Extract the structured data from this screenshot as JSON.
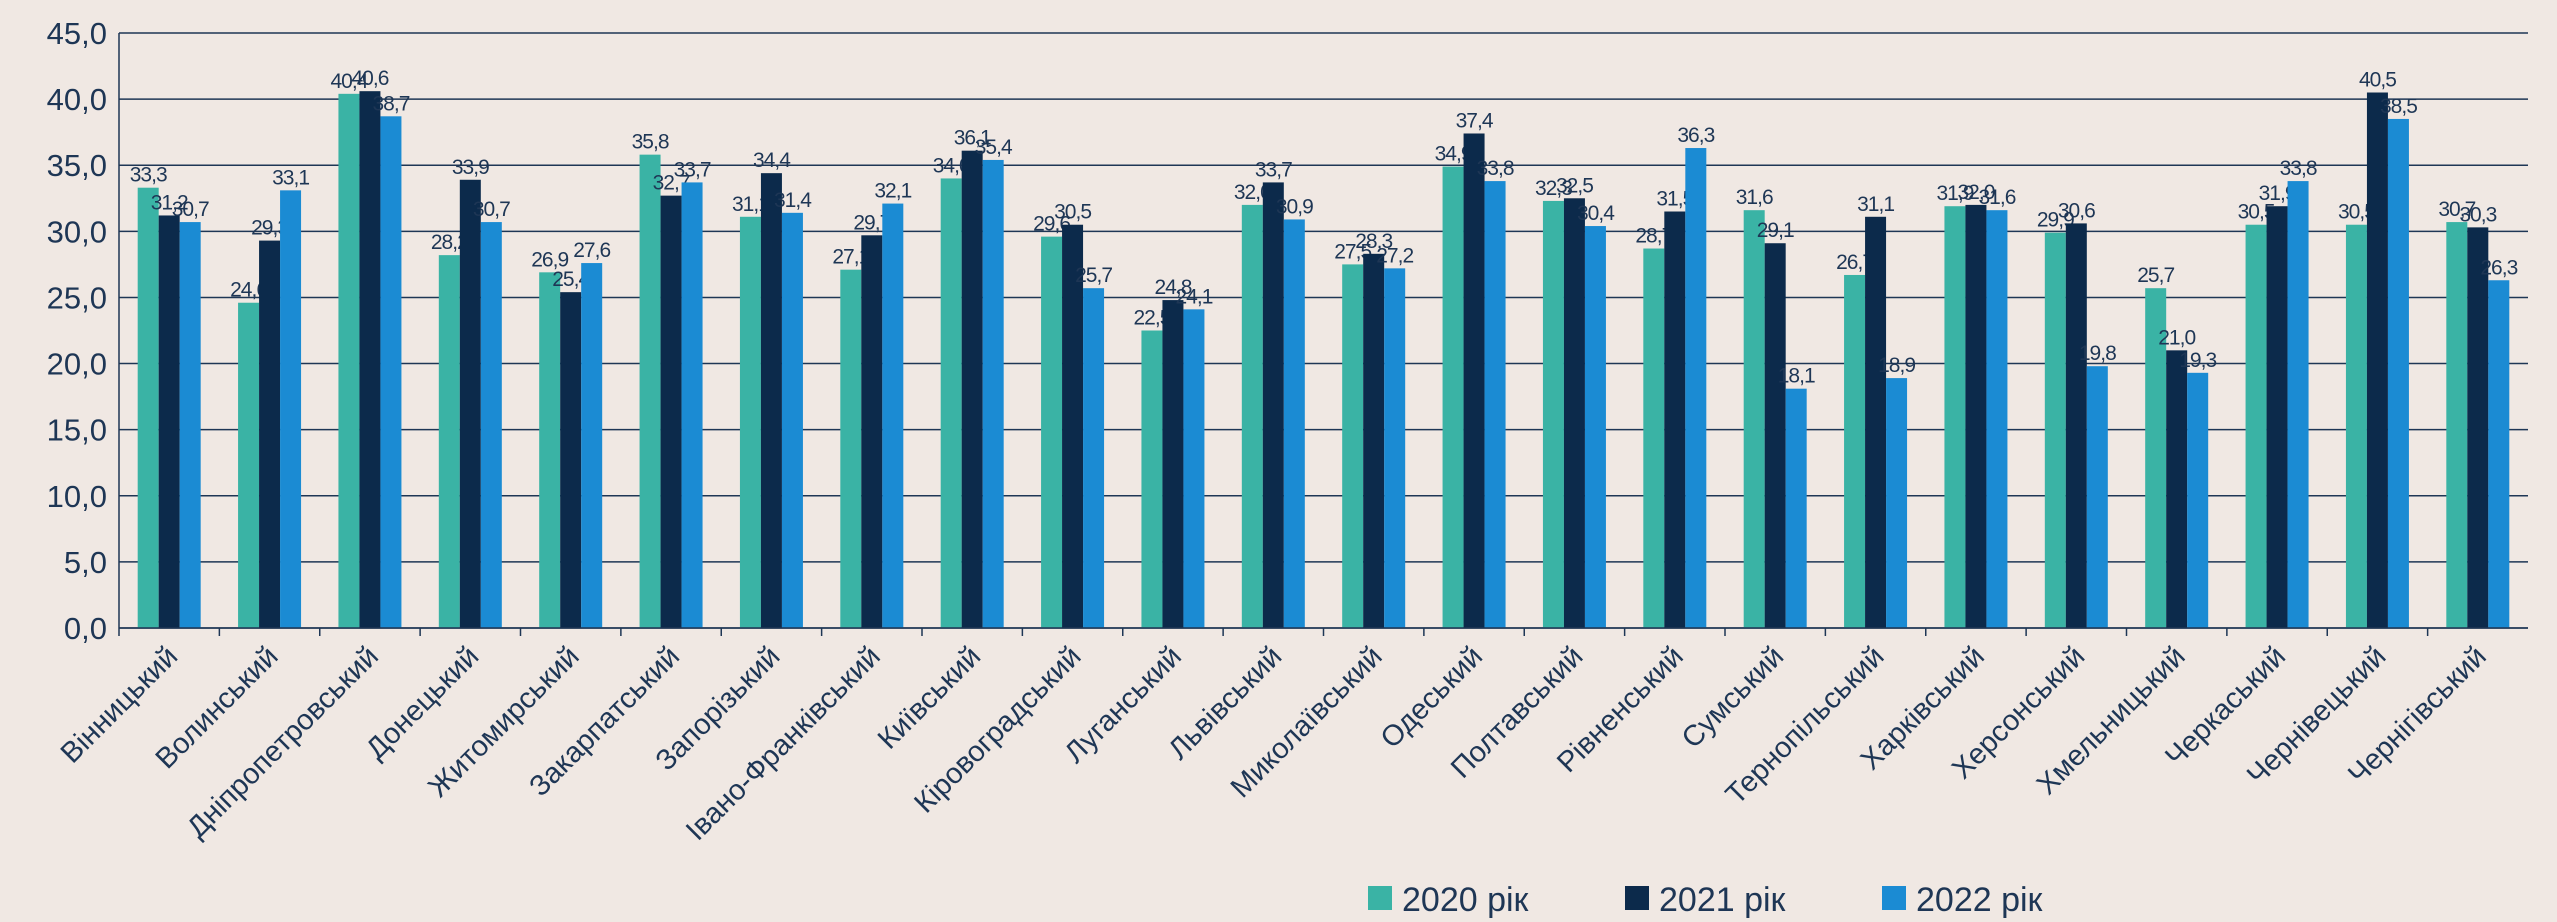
{
  "chart_data": {
    "type": "bar",
    "categories": [
      "Вінницький",
      "Волинський",
      "Дніпропетровський",
      "Донецький",
      "Житомирський",
      "Закарпатський",
      "Запорізький",
      "Івано-Франківський",
      "Київський",
      "Кіровоградський",
      "Луганський",
      "Львівський",
      "Миколаївський",
      "Одеський",
      "Полтавський",
      "Рівненський",
      "Сумський",
      "Тернопільський",
      "Харківський",
      "Херсонський",
      "Хмельницький",
      "Черкаський",
      "Чернівецький",
      "Чернігівський"
    ],
    "series": [
      {
        "name": "2020 рік",
        "color": "#3ab3a5",
        "values": [
          33.3,
          24.6,
          40.4,
          28.2,
          26.9,
          35.8,
          31.1,
          27.1,
          34.0,
          29.6,
          22.5,
          32.0,
          27.5,
          34.9,
          32.3,
          28.7,
          31.6,
          26.7,
          31.9,
          29.9,
          25.7,
          30.5,
          30.5,
          30.7
        ],
        "value_labels": [
          "33,3",
          "24,6",
          "40,4",
          "28,2",
          "26,9",
          "35,8",
          "31,1",
          "27,1",
          "34,0",
          "29,6",
          "22,5",
          "32,0",
          "27,5",
          "34,9",
          "32,3",
          "28,7",
          "31,6",
          "26,7",
          "31,9",
          "29,9",
          "25,7",
          "30,5",
          "30,5",
          "30,7"
        ]
      },
      {
        "name": "2021 рік",
        "color": "#0c2a4b",
        "values": [
          31.2,
          29.3,
          40.6,
          33.9,
          25.4,
          32.7,
          34.4,
          29.7,
          36.1,
          30.5,
          24.8,
          33.7,
          28.3,
          37.4,
          32.5,
          31.5,
          29.1,
          31.1,
          32.0,
          30.6,
          21.0,
          31.9,
          40.5,
          30.3
        ],
        "value_labels": [
          "31,2",
          "29,3",
          "40,6",
          "33,9",
          "25,4",
          "32,7",
          "34,4",
          "29,7",
          "36,1",
          "30,5",
          "24,8",
          "33,7",
          "28,3",
          "37,4",
          "32,5",
          "31,5",
          "29,1",
          "31,1",
          "32,0",
          "30,6",
          "21,0",
          "31,9",
          "40,5",
          "30,3"
        ]
      },
      {
        "name": "2022 рік",
        "color": "#1b8bd3",
        "values": [
          30.7,
          33.1,
          38.7,
          30.7,
          27.6,
          33.7,
          31.4,
          32.1,
          35.4,
          25.7,
          24.1,
          30.9,
          27.2,
          33.8,
          30.4,
          36.3,
          18.1,
          18.9,
          31.6,
          19.8,
          19.3,
          33.8,
          38.5,
          26.3
        ],
        "value_labels": [
          "30,7",
          "33,1",
          "38,7",
          "30,7",
          "27,6",
          "33,7",
          "31,4",
          "32,1",
          "35,4",
          "25,7",
          "24,1",
          "30,9",
          "27,2",
          "33,8",
          "30,4",
          "36,3",
          "18,1",
          "18,9",
          "31,6",
          "19,8",
          "19,3",
          "33,8",
          "38,5",
          "26,3"
        ]
      }
    ],
    "ylim": [
      0,
      45
    ],
    "yticks": [
      {
        "value": 0,
        "label": "0,0"
      },
      {
        "value": 5,
        "label": "5,0"
      },
      {
        "value": 10,
        "label": "10,0"
      },
      {
        "value": 15,
        "label": "15,0"
      },
      {
        "value": 20,
        "label": "20,0"
      },
      {
        "value": 25,
        "label": "25,0"
      },
      {
        "value": 30,
        "label": "30,0"
      },
      {
        "value": 35,
        "label": "35,0"
      },
      {
        "value": 40,
        "label": "40,0"
      },
      {
        "value": 45,
        "label": "45,0"
      }
    ],
    "grid": true
  }
}
